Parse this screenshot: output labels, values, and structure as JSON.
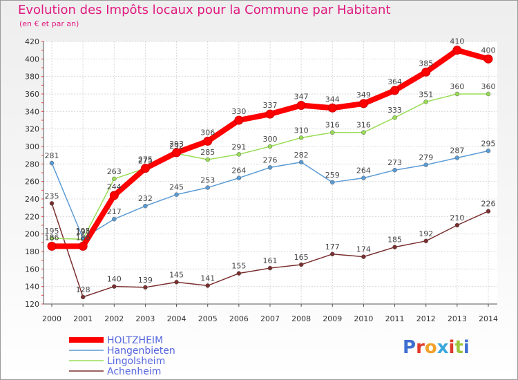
{
  "title": "Evolution des Impôts locaux pour la Commune par Habitant",
  "subtitle": "(en € et par an)",
  "logo": {
    "text": "Proxiti",
    "colors": [
      "#3d6fd0",
      "#e03a2a",
      "#f0a22a",
      "#3aa7dc",
      "#e03a2a",
      "#9bc53d",
      "#3d6fd0"
    ]
  },
  "chart_data": {
    "type": "line",
    "x": [
      "2000",
      "2001",
      "2002",
      "2003",
      "2004",
      "2005",
      "2006",
      "2007",
      "2008",
      "2009",
      "2010",
      "2011",
      "2012",
      "2013",
      "2014"
    ],
    "ylim": [
      120,
      420
    ],
    "yticks": [
      120,
      140,
      160,
      180,
      200,
      220,
      240,
      260,
      280,
      300,
      320,
      340,
      360,
      380,
      400,
      420
    ],
    "grid": true,
    "legend_position": "bottom-left",
    "series": [
      {
        "name": "HOLTZHEIM",
        "color": "#ff0000",
        "values": [
          186,
          186,
          244,
          275,
          293,
          306,
          330,
          337,
          347,
          344,
          349,
          364,
          385,
          410,
          400
        ]
      },
      {
        "name": "Hangenbieten",
        "color": "#5b9bd5",
        "values": [
          281,
          195,
          217,
          232,
          245,
          253,
          264,
          276,
          282,
          259,
          264,
          273,
          279,
          287,
          295
        ]
      },
      {
        "name": "Lingolsheim",
        "color": "#99dd55",
        "values": [
          195,
          194,
          263,
          275,
          292,
          285,
          291,
          300,
          310,
          316,
          316,
          333,
          351,
          360,
          360
        ]
      },
      {
        "name": "Achenheim",
        "color": "#7a2e2e",
        "values": [
          235,
          128,
          140,
          139,
          145,
          141,
          155,
          161,
          165,
          177,
          174,
          185,
          192,
          210,
          226
        ]
      }
    ]
  }
}
